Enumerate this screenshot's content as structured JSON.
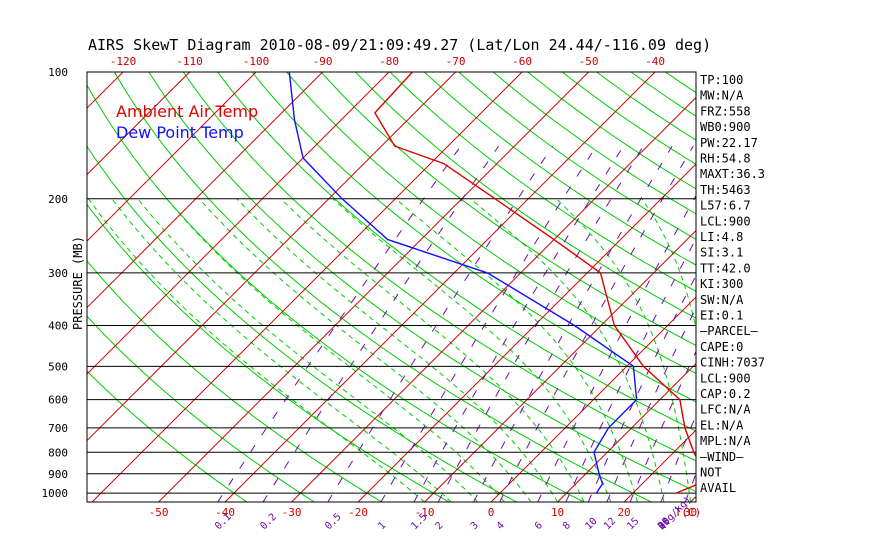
{
  "title": "AIRS SkewT Diagram 2010-08-09/21:09:49.27 (Lat/Lon 24.44/-116.09 deg)",
  "ylabel": "PRESSURE (MB)",
  "legend": {
    "air": "Ambient Air Temp",
    "dew": "Dew Point Temp"
  },
  "colors": {
    "air": "#e00000",
    "dew": "#1010ff",
    "isotherm": "#cc0000",
    "adiabat": "#00cc00",
    "mixing": "#6a0dad",
    "tick_text": "#cc0000"
  },
  "chart_data": {
    "type": "line",
    "title": "AIRS SkewT Diagram 2010-08-09/21:09:49.27 (Lat/Lon 24.44/-116.09 deg)",
    "ylabel": "PRESSURE (MB)",
    "xlabel": "T(C)",
    "y_scale": "log",
    "ylim": [
      1050,
      100
    ],
    "pressure_ticks": [
      "100",
      "200",
      "300",
      "400",
      "500",
      "600",
      "700",
      "800",
      "900",
      "1000"
    ],
    "top_temp_ticks": [
      "-120",
      "-110",
      "-100",
      "-90",
      "-80",
      "-70",
      "-60",
      "-50",
      "-40"
    ],
    "bottom_temp_ticks": [
      "-50",
      "-40",
      "-30",
      "-20",
      "-10",
      "0",
      "10",
      "20",
      "30",
      "T(C)"
    ],
    "mixing_ratio_labels": [
      "0.1",
      "0.2",
      "0.5",
      "1",
      "1.5",
      "2",
      "3",
      "4",
      "6",
      "8",
      "10",
      "12",
      "15",
      "20",
      "25",
      "30",
      "40",
      "Q(g/kg)"
    ],
    "series": [
      {
        "name": "Ambient Air Temp",
        "x": [
          26.5,
          28.5,
          28.0,
          23.0,
          18.0,
          13.0,
          2.5,
          -8.0,
          -18.0,
          -30.0,
          -45.0,
          -58.0,
          -68.0,
          -76.0,
          -76.5
        ],
        "y": [
          1000,
          950,
          900,
          800,
          700,
          600,
          500,
          400,
          300,
          250,
          200,
          165,
          150,
          125,
          100
        ]
      },
      {
        "name": "Dew Point Temp",
        "x": [
          14.5,
          14.0,
          12.0,
          8.0,
          6.5,
          6.5,
          1.0,
          -14.0,
          -35.0,
          -55.0,
          -68.0,
          -80.0,
          -87.0,
          -95.0
        ],
        "y": [
          1000,
          950,
          900,
          800,
          700,
          600,
          500,
          400,
          300,
          250,
          200,
          160,
          130,
          100
        ]
      }
    ]
  },
  "stats": [
    "TP:100",
    "MW:N/A",
    "FRZ:558",
    "WB0:900",
    "PW:22.17",
    "RH:54.8",
    "MAXT:36.3",
    "TH:5463",
    "L57:6.7",
    "LCL:900",
    "LI:4.8",
    "SI:3.1",
    "TT:42.0",
    "KI:300",
    "SW:N/A",
    "EI:0.1",
    "–PARCEL–",
    "CAPE:0",
    "CINH:7037",
    "LCL:900",
    "CAP:0.2",
    "LFC:N/A",
    "EL:N/A",
    "MPL:N/A",
    "–WIND–",
    "NOT",
    "AVAIL"
  ]
}
